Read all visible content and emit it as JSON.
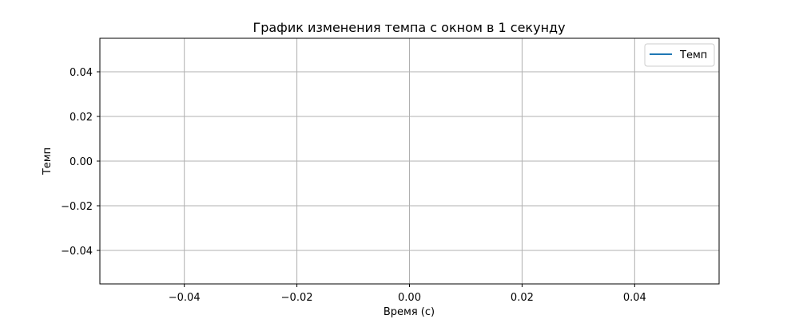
{
  "chart_data": {
    "type": "line",
    "title": "График изменения темпа с окном в 1 секунду",
    "xlabel": "Время (с)",
    "ylabel": "Темп",
    "xlim": [
      -0.055,
      0.055
    ],
    "ylim": [
      -0.055,
      0.055
    ],
    "x_ticks": [
      -0.04,
      -0.02,
      0.0,
      0.02,
      0.04
    ],
    "x_tick_labels": [
      "−0.04",
      "−0.02",
      "0.00",
      "0.02",
      "0.04"
    ],
    "y_ticks": [
      0.04,
      0.02,
      0.0,
      -0.02,
      -0.04
    ],
    "y_tick_labels": [
      "0.04",
      "0.02",
      "0.00",
      "−0.02",
      "−0.04"
    ],
    "grid": true,
    "legend_position": "top-right",
    "series": [
      {
        "name": "Темп",
        "color": "#1f77b4",
        "x": [],
        "y": []
      }
    ]
  }
}
